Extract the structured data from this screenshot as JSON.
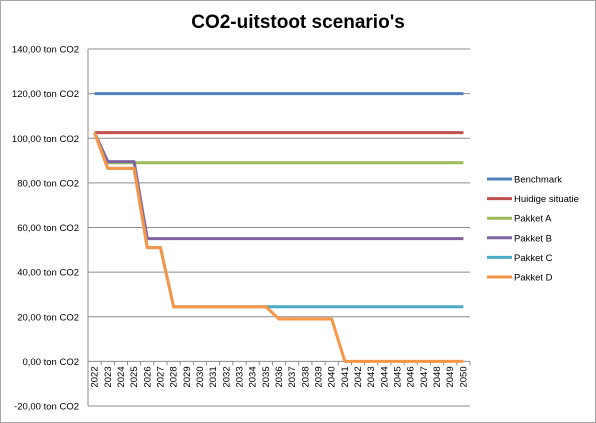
{
  "chart_data": {
    "type": "line",
    "title": "CO2-uitstoot scenario's",
    "xlabel": "",
    "ylabel": "",
    "ylim": [
      -20,
      140
    ],
    "y_ticks": [
      -20,
      0,
      20,
      40,
      60,
      80,
      100,
      120,
      140
    ],
    "y_tick_labels": [
      "-20,00 ton CO2",
      "0,00 ton CO2",
      "20,00 ton CO2",
      "40,00 ton CO2",
      "60,00 ton CO2",
      "80,00 ton CO2",
      "100,00 ton CO2",
      "120,00 ton CO2",
      "140,00 ton CO2"
    ],
    "grid": true,
    "legend_position": "right",
    "x": [
      "2022",
      "2023",
      "2024",
      "2025",
      "2026",
      "2027",
      "2028",
      "2029",
      "2030",
      "2031",
      "2032",
      "2033",
      "2034",
      "2035",
      "2036",
      "2037",
      "2038",
      "2039",
      "2040",
      "2041",
      "2042",
      "2043",
      "2044",
      "2045",
      "2046",
      "2047",
      "2048",
      "2049",
      "2050"
    ],
    "series": [
      {
        "name": "Benchmark",
        "color": "#4f81bd",
        "values": [
          120,
          120,
          120,
          120,
          120,
          120,
          120,
          120,
          120,
          120,
          120,
          120,
          120,
          120,
          120,
          120,
          120,
          120,
          120,
          120,
          120,
          120,
          120,
          120,
          120,
          120,
          120,
          120,
          120
        ]
      },
      {
        "name": "Huidige situatie",
        "color": "#c0504d",
        "values": [
          102.5,
          102.5,
          102.5,
          102.5,
          102.5,
          102.5,
          102.5,
          102.5,
          102.5,
          102.5,
          102.5,
          102.5,
          102.5,
          102.5,
          102.5,
          102.5,
          102.5,
          102.5,
          102.5,
          102.5,
          102.5,
          102.5,
          102.5,
          102.5,
          102.5,
          102.5,
          102.5,
          102.5,
          102.5
        ]
      },
      {
        "name": "Pakket A",
        "color": "#9bbb59",
        "values": [
          102.5,
          89,
          89,
          89,
          89,
          89,
          89,
          89,
          89,
          89,
          89,
          89,
          89,
          89,
          89,
          89,
          89,
          89,
          89,
          89,
          89,
          89,
          89,
          89,
          89,
          89,
          89,
          89,
          89
        ]
      },
      {
        "name": "Pakket B",
        "color": "#8064a2",
        "values": [
          102.5,
          89.5,
          89.5,
          89.5,
          55,
          55,
          55,
          55,
          55,
          55,
          55,
          55,
          55,
          55,
          55,
          55,
          55,
          55,
          55,
          55,
          55,
          55,
          55,
          55,
          55,
          55,
          55,
          55,
          55
        ]
      },
      {
        "name": "Pakket C",
        "color": "#4bacc6",
        "values": [
          102.5,
          86.5,
          86.5,
          86.5,
          51,
          51,
          24.5,
          24.5,
          24.5,
          24.5,
          24.5,
          24.5,
          24.5,
          24.5,
          24.5,
          24.5,
          24.5,
          24.5,
          24.5,
          24.5,
          24.5,
          24.5,
          24.5,
          24.5,
          24.5,
          24.5,
          24.5,
          24.5,
          24.5
        ]
      },
      {
        "name": "Pakket D",
        "color": "#f79646",
        "values": [
          102.5,
          86.5,
          86.5,
          86.5,
          51,
          51,
          24.5,
          24.5,
          24.5,
          24.5,
          24.5,
          24.5,
          24.5,
          24.5,
          19,
          19,
          19,
          19,
          19,
          0,
          0,
          0,
          0,
          0,
          0,
          0,
          0,
          0,
          0
        ]
      }
    ]
  }
}
